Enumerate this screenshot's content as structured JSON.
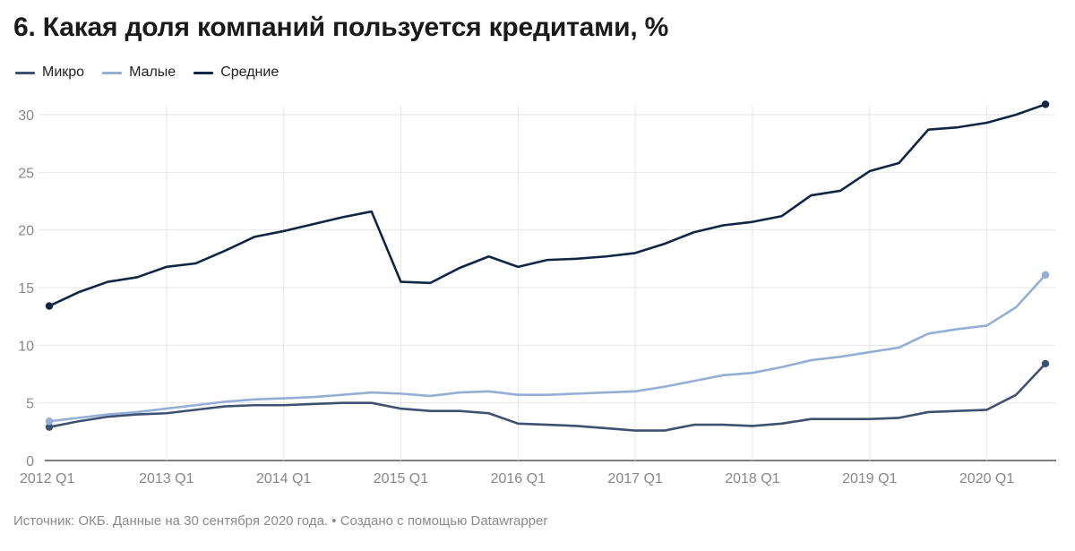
{
  "title": "6. Какая доля компаний пользуется кредитами, %",
  "legend": [
    {
      "label": "Микро",
      "color": "#3d5171"
    },
    {
      "label": "Малые",
      "color": "#94aed4"
    },
    {
      "label": "Средние",
      "color": "#0f2645"
    }
  ],
  "footer": {
    "source": "Источник: ОКБ. Данные на 30 сентября 2020 года.",
    "separator": "•",
    "credit": "Создано с помощью Datawrapper"
  },
  "chart_data": {
    "type": "line",
    "title": "6. Какая доля компаний пользуется кредитами, %",
    "xlabel": "",
    "ylabel": "",
    "ylim": [
      0,
      30
    ],
    "yticks": [
      0,
      5,
      10,
      15,
      20,
      25,
      30
    ],
    "grid": true,
    "legend_position": "top-left",
    "x_tick_labels": [
      "2012 Q1",
      "2013 Q1",
      "2014 Q1",
      "2015 Q1",
      "2016 Q1",
      "2017 Q1",
      "2018 Q1",
      "2019 Q1",
      "2020 Q1"
    ],
    "x": [
      "2012 Q1",
      "2012 Q2",
      "2012 Q3",
      "2012 Q4",
      "2013 Q1",
      "2013 Q2",
      "2013 Q3",
      "2013 Q4",
      "2014 Q1",
      "2014 Q2",
      "2014 Q3",
      "2014 Q4",
      "2015 Q1",
      "2015 Q2",
      "2015 Q3",
      "2015 Q4",
      "2016 Q1",
      "2016 Q2",
      "2016 Q3",
      "2016 Q4",
      "2017 Q1",
      "2017 Q2",
      "2017 Q3",
      "2017 Q4",
      "2018 Q1",
      "2018 Q2",
      "2018 Q3",
      "2018 Q4",
      "2019 Q1",
      "2019 Q2",
      "2019 Q3",
      "2019 Q4",
      "2020 Q1",
      "2020 Q2",
      "2020 Q3"
    ],
    "series": [
      {
        "name": "Микро",
        "color": "#3d5171",
        "values": [
          2.9,
          3.4,
          3.8,
          4.0,
          4.1,
          4.4,
          4.7,
          4.8,
          4.8,
          4.9,
          5.0,
          5.0,
          4.5,
          4.3,
          4.3,
          4.1,
          3.2,
          3.1,
          3.0,
          2.8,
          2.6,
          2.6,
          3.1,
          3.1,
          3.0,
          3.2,
          3.6,
          3.6,
          3.6,
          3.7,
          4.2,
          4.3,
          4.4,
          5.7,
          8.4
        ]
      },
      {
        "name": "Малые",
        "color": "#94aed4",
        "values": [
          3.4,
          3.7,
          4.0,
          4.2,
          4.5,
          4.8,
          5.1,
          5.3,
          5.4,
          5.5,
          5.7,
          5.9,
          5.8,
          5.6,
          5.9,
          6.0,
          5.7,
          5.7,
          5.8,
          5.9,
          6.0,
          6.4,
          6.9,
          7.4,
          7.6,
          8.1,
          8.7,
          9.0,
          9.4,
          9.8,
          11.0,
          11.4,
          11.7,
          13.3,
          16.1
        ]
      },
      {
        "name": "Средние",
        "color": "#0f2645",
        "values": [
          13.4,
          14.6,
          15.5,
          15.9,
          16.8,
          17.1,
          18.2,
          19.4,
          19.9,
          20.5,
          21.1,
          21.6,
          15.5,
          15.4,
          16.7,
          17.7,
          16.8,
          17.4,
          17.5,
          17.7,
          18.0,
          18.8,
          19.8,
          20.4,
          20.7,
          21.2,
          23.0,
          23.4,
          25.1,
          25.8,
          28.7,
          28.9,
          29.3,
          30.0,
          30.9
        ]
      }
    ]
  }
}
